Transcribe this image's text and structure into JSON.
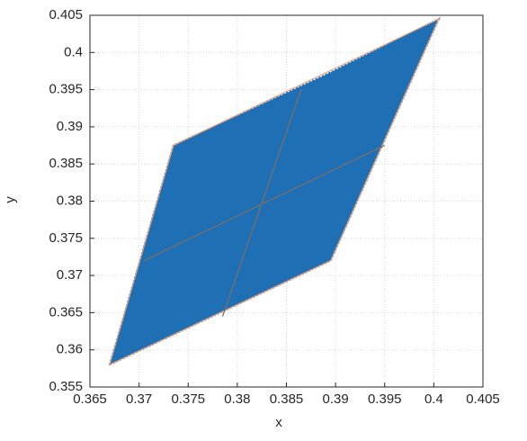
{
  "chart_data": {
    "type": "scatter",
    "xlabel": "x",
    "ylabel": "y",
    "xlim": [
      0.365,
      0.405
    ],
    "ylim": [
      0.355,
      0.405
    ],
    "xticks": [
      0.365,
      0.37,
      0.375,
      0.38,
      0.385,
      0.39,
      0.395,
      0.4,
      0.405
    ],
    "yticks": [
      0.355,
      0.36,
      0.365,
      0.37,
      0.375,
      0.38,
      0.385,
      0.39,
      0.395,
      0.4,
      0.405
    ],
    "grid": true,
    "point_region": {
      "color": "#1f6fb5",
      "x": [
        0.367,
        0.3735,
        0.389,
        0.4005,
        0.3895
      ],
      "y": [
        0.358,
        0.3875,
        0.397,
        0.4045,
        0.372
      ]
    },
    "boundary": {
      "color": "#e8a07a",
      "x": [
        0.367,
        0.3735,
        0.4005,
        0.3895
      ],
      "y": [
        0.358,
        0.3875,
        0.4045,
        0.372
      ]
    },
    "lines": [
      {
        "color": "#7a6f6a",
        "x": [
          0.3785,
          0.3865
        ],
        "y": [
          0.3645,
          0.395
        ]
      },
      {
        "color": "#7a6f6a",
        "x": [
          0.3705,
          0.395
        ],
        "y": [
          0.372,
          0.3875
        ]
      }
    ]
  }
}
